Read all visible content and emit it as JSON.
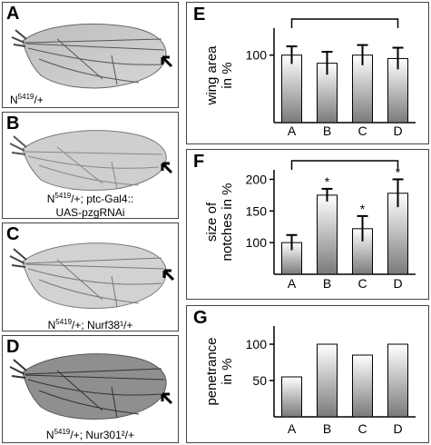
{
  "wing_panels": [
    {
      "letter": "A",
      "genotype": [
        "N5419/+"
      ]
    },
    {
      "letter": "B",
      "genotype": [
        "N5419/+; ptc-Gal4::",
        "UAS-pzgRNAi"
      ]
    },
    {
      "letter": "C",
      "genotype": [
        "N5419/+; Nurf38¹/+"
      ]
    },
    {
      "letter": "D",
      "genotype": [
        "N5419/+; Nur301²/+"
      ]
    }
  ],
  "chart_data": [
    {
      "panel": "E",
      "type": "bar",
      "categories": [
        "A",
        "B",
        "C",
        "D"
      ],
      "values": [
        100,
        88,
        100,
        95
      ],
      "errors": [
        13,
        17,
        15,
        16
      ],
      "ylabel": [
        "wing area",
        "in %"
      ],
      "yticks": [
        100
      ],
      "ylim": [
        0,
        140
      ],
      "bracket": [
        "A",
        "D"
      ],
      "significance": []
    },
    {
      "panel": "F",
      "type": "bar",
      "categories": [
        "A",
        "B",
        "C",
        "D"
      ],
      "values": [
        100,
        175,
        122,
        178
      ],
      "errors": [
        12,
        10,
        20,
        22
      ],
      "ylabel": [
        "size of",
        "notches in %"
      ],
      "yticks": [
        100,
        150,
        200
      ],
      "ylim": [
        50,
        215
      ],
      "bracket": [
        "A",
        "D"
      ],
      "significance": [
        "B",
        "C",
        "D"
      ]
    },
    {
      "panel": "G",
      "type": "bar",
      "categories": [
        "A",
        "B",
        "C",
        "D"
      ],
      "values": [
        55,
        100,
        85,
        100
      ],
      "errors": [],
      "ylabel": [
        "penetrance",
        "in %"
      ],
      "yticks": [
        50,
        100
      ],
      "ylim": [
        0,
        125
      ],
      "bracket": null,
      "significance": []
    }
  ]
}
